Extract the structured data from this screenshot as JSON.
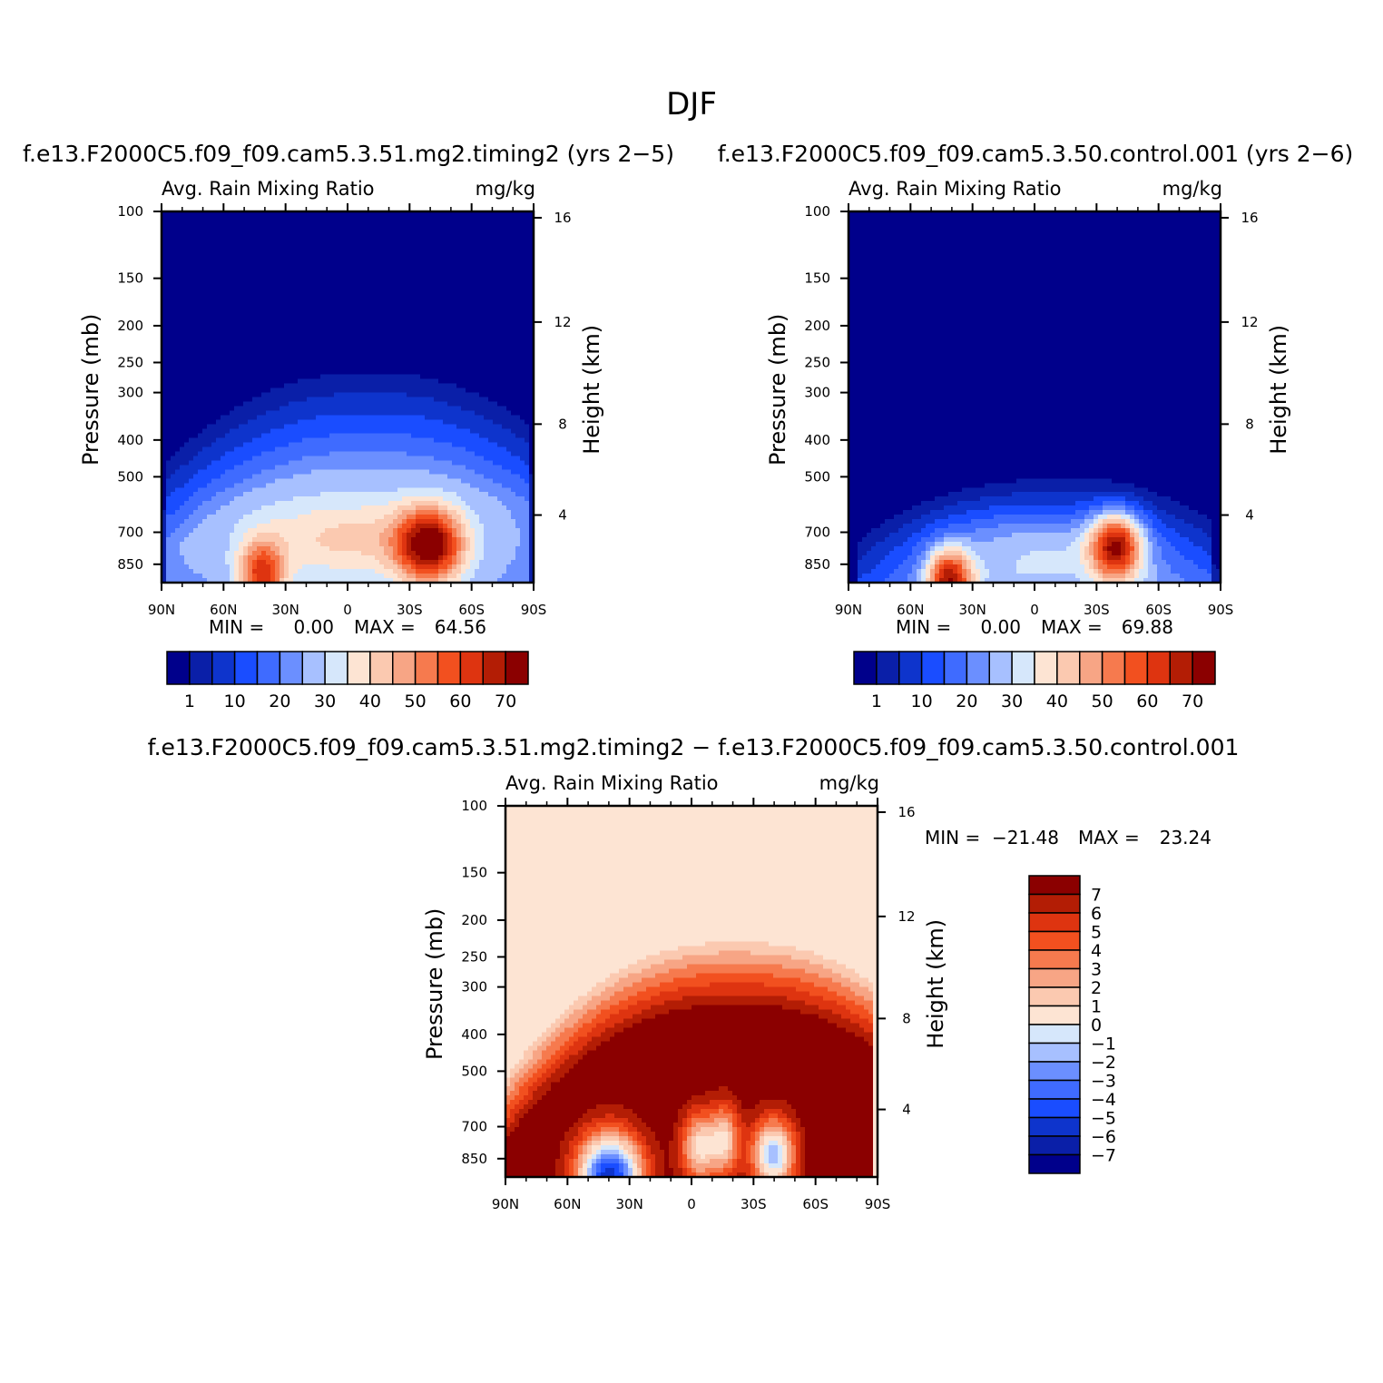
{
  "figure": {
    "title": "DJF"
  },
  "colors": {
    "abs": [
      "#00008b",
      "#0a1fa8",
      "#0e34cc",
      "#1a4dff",
      "#3f6bff",
      "#6b8fff",
      "#a7c0ff",
      "#d6e7fb",
      "#fde4d3",
      "#fbc9b0",
      "#f7a585",
      "#f67a4e",
      "#f2501f",
      "#de3410",
      "#b31d05",
      "#8b0000"
    ],
    "diff": [
      "#00008b",
      "#0a1fa8",
      "#0e34cc",
      "#1a4dff",
      "#3f6bff",
      "#6b8fff",
      "#a7c0ff",
      "#d6e7fb",
      "#fde4d3",
      "#fbc9b0",
      "#f7a585",
      "#f67a4e",
      "#f2501f",
      "#de3410",
      "#b31d05",
      "#8b0000"
    ]
  },
  "chart_data": [
    {
      "type": "heatmap",
      "title": "f.e13.F2000C5.f09_f09.cam5.3.51.mg2.timing2 (yrs 2−5)",
      "left_label": "Avg. Rain Mixing Ratio",
      "right_label": "mg/kg",
      "xlabel": "",
      "ylabel": "Pressure (mb)",
      "ylabel_right": "Height (km)",
      "x_ticks": [
        "90N",
        "60N",
        "30N",
        "0",
        "30S",
        "60S",
        "90S"
      ],
      "y_ticks": [
        "100",
        "150",
        "200",
        "250",
        "300",
        "400",
        "500",
        "700",
        "850"
      ],
      "y_ticks_right": [
        "16",
        "12",
        "8",
        "4"
      ],
      "stats": {
        "min_label": "MIN =",
        "min": "0.00",
        "max_label": "MAX =",
        "max": "64.56"
      },
      "legend_levels": [
        "1",
        "10",
        "20",
        "30",
        "40",
        "50",
        "60",
        "70"
      ]
    },
    {
      "type": "heatmap",
      "title": "f.e13.F2000C5.f09_f09.cam5.3.50.control.001 (yrs 2−6)",
      "left_label": "Avg. Rain Mixing Ratio",
      "right_label": "mg/kg",
      "xlabel": "",
      "ylabel": "Pressure (mb)",
      "ylabel_right": "Height (km)",
      "x_ticks": [
        "90N",
        "60N",
        "30N",
        "0",
        "30S",
        "60S",
        "90S"
      ],
      "y_ticks": [
        "100",
        "150",
        "200",
        "250",
        "300",
        "400",
        "500",
        "700",
        "850"
      ],
      "y_ticks_right": [
        "16",
        "12",
        "8",
        "4"
      ],
      "stats": {
        "min_label": "MIN =",
        "min": "0.00",
        "max_label": "MAX =",
        "max": "69.88"
      },
      "legend_levels": [
        "1",
        "10",
        "20",
        "30",
        "40",
        "50",
        "60",
        "70"
      ]
    },
    {
      "type": "heatmap",
      "title": "f.e13.F2000C5.f09_f09.cam5.3.51.mg2.timing2 − f.e13.F2000C5.f09_f09.cam5.3.50.control.001",
      "left_label": "Avg. Rain Mixing Ratio",
      "right_label": "mg/kg",
      "xlabel": "",
      "ylabel": "Pressure (mb)",
      "ylabel_right": "Height (km)",
      "x_ticks": [
        "90N",
        "60N",
        "30N",
        "0",
        "30S",
        "60S",
        "90S"
      ],
      "y_ticks": [
        "100",
        "150",
        "200",
        "250",
        "300",
        "400",
        "500",
        "700",
        "850"
      ],
      "y_ticks_right": [
        "16",
        "12",
        "8",
        "4"
      ],
      "stats": {
        "min_label": "MIN =",
        "min": "−21.48",
        "max_label": "MAX =",
        "max": "23.24"
      },
      "legend_levels": [
        "7",
        "6",
        "5",
        "4",
        "3",
        "2",
        "1",
        "0",
        "−1",
        "−2",
        "−3",
        "−4",
        "−5",
        "−6",
        "−7"
      ]
    }
  ]
}
